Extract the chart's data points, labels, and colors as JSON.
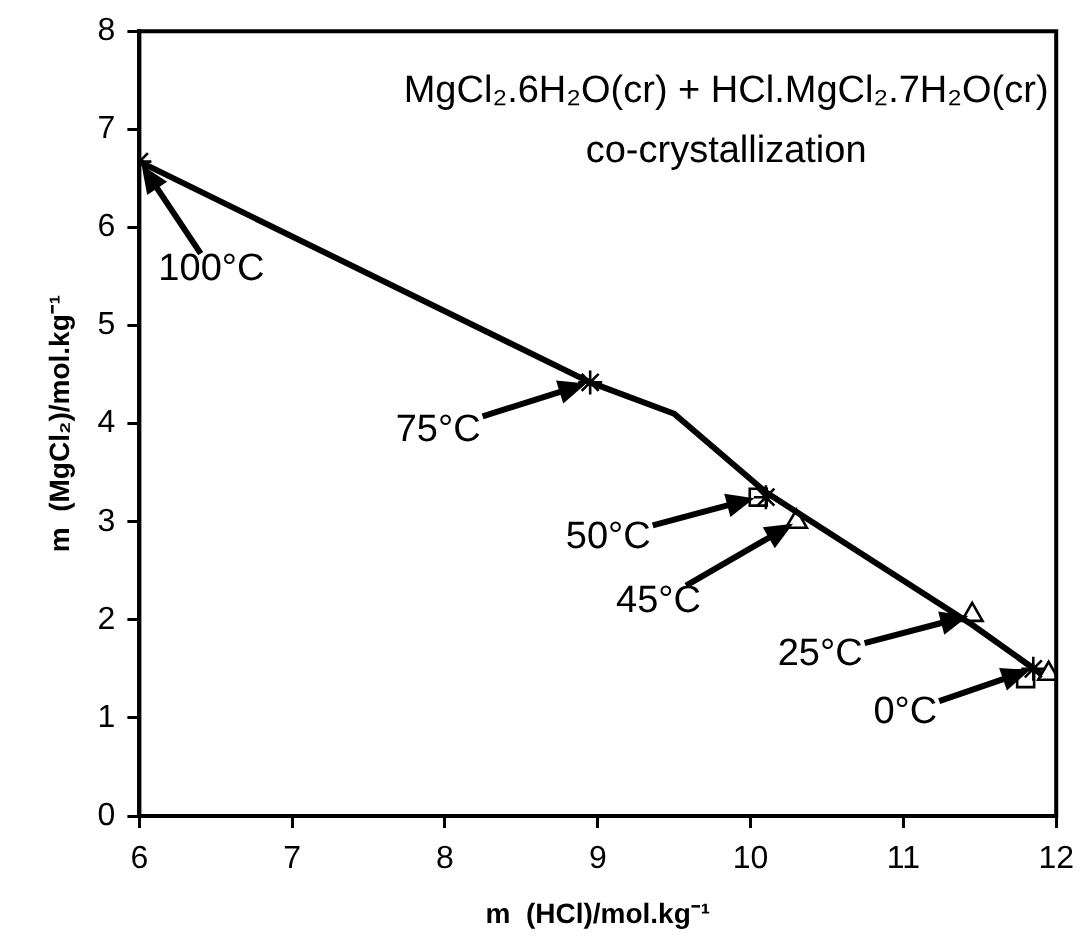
{
  "chart_data": {
    "type": "scatter",
    "title": "MgCl₂.6H₂O(cr) + HCl.MgCl₂.7H₂O(cr)",
    "subtitle": "co-crystallization",
    "xlabel": "m  (HCl)/mol.kg⁻¹",
    "ylabel": "m  (MgCl₂)/mol.kg⁻¹",
    "xlim": [
      6,
      12
    ],
    "ylim": [
      0,
      8
    ],
    "xticks": [
      6,
      7,
      8,
      9,
      10,
      11,
      12
    ],
    "yticks": [
      0,
      1,
      2,
      3,
      4,
      5,
      6,
      7,
      8
    ],
    "grid": false,
    "legend": false,
    "series": [
      {
        "type": "line",
        "marker": "none",
        "line_style": "solid",
        "color": "#000000",
        "x": [
          6,
          8.95,
          9.5,
          10.1,
          10.8,
          11.45,
          11.9
        ],
        "values": [
          6.67,
          4.42,
          4.1,
          3.3,
          2.6,
          1.95,
          1.45
        ]
      },
      {
        "marker": "cross",
        "color": "#000000",
        "x": [
          6,
          8.95,
          10.1,
          11.85
        ],
        "values": [
          6.67,
          4.42,
          3.25,
          1.5
        ]
      },
      {
        "marker": "square",
        "color": "#000000",
        "x": [
          10.05,
          11.8
        ],
        "values": [
          3.25,
          1.4
        ]
      },
      {
        "marker": "triangle",
        "color": "#000000",
        "x": [
          10.3,
          11.45,
          11.95
        ],
        "values": [
          3.0,
          2.05,
          1.45
        ]
      }
    ],
    "annotations": [
      {
        "text": "100°C",
        "x": 6,
        "y": 6.67
      },
      {
        "text": "75°C",
        "x": 8.95,
        "y": 4.42
      },
      {
        "text": "50°C",
        "x": 10.05,
        "y": 3.25
      },
      {
        "text": "45°C",
        "x": 10.3,
        "y": 3.0
      },
      {
        "text": "25°C",
        "x": 11.45,
        "y": 2.05
      },
      {
        "text": "0°C",
        "x": 11.85,
        "y": 1.5
      }
    ]
  }
}
